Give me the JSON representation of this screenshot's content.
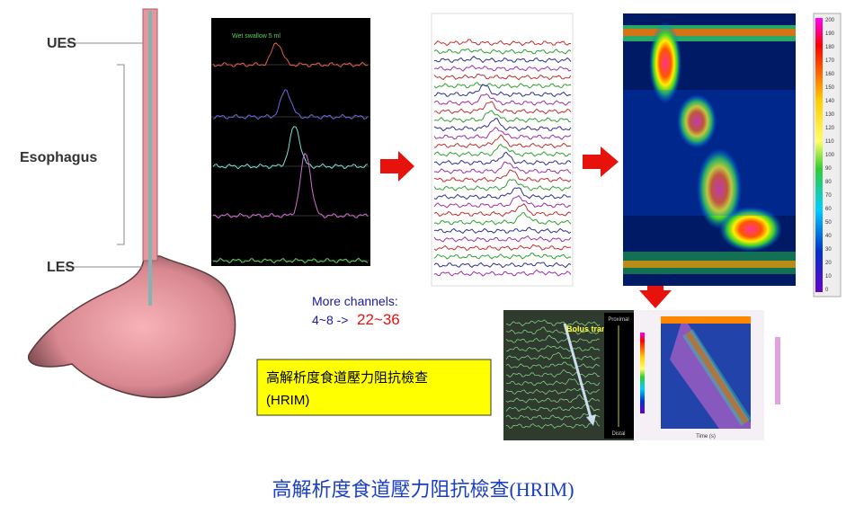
{
  "anatomy": {
    "ues": "UES",
    "esophagus": "Esophagus",
    "les": "LES"
  },
  "manometry_panel": {
    "annotation": "Wet swallow 5 ml"
  },
  "channels_note": {
    "line1": "More channels:",
    "from": "4~8 ->",
    "to": "22~36"
  },
  "colorbar": {
    "labels": [
      "200",
      "190",
      "180",
      "170",
      "160",
      "150",
      "140",
      "130",
      "120",
      "110",
      "100",
      "90",
      "80",
      "70",
      "60",
      "50",
      "40",
      "30",
      "20",
      "10",
      "0"
    ]
  },
  "hrim_box": {
    "line1": "高解析度食道壓力阻抗檢查",
    "line2": "(HRIM)"
  },
  "impedance_panel": {
    "bolus": "Bolus transit",
    "proximal": "Proximal",
    "distal": "Distal",
    "time": "Time (s)"
  },
  "caption": "高解析度食道壓力阻抗檢查(HRIM)"
}
